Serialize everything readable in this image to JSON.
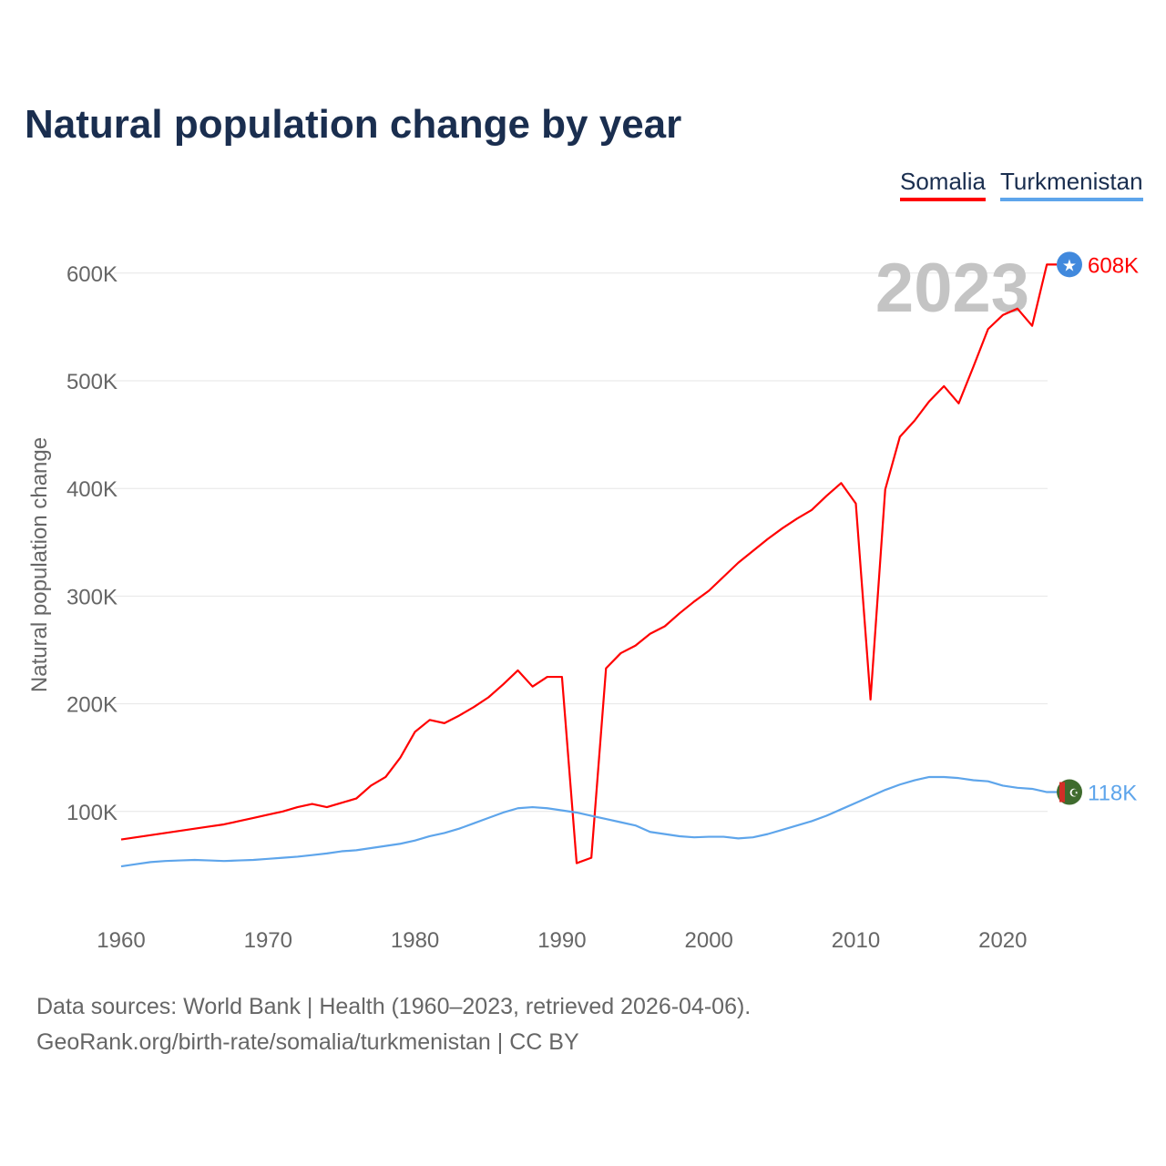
{
  "chart_data": {
    "type": "line",
    "title": "Natural population change by year",
    "xlabel": "",
    "ylabel": "Natural population change",
    "xlim": [
      1960,
      2023
    ],
    "ylim": [
      0,
      650000
    ],
    "y_ticks": [
      {
        "v": 100000,
        "label": "100K"
      },
      {
        "v": 200000,
        "label": "200K"
      },
      {
        "v": 300000,
        "label": "300K"
      },
      {
        "v": 400000,
        "label": "400K"
      },
      {
        "v": 500000,
        "label": "500K"
      },
      {
        "v": 600000,
        "label": "600K"
      }
    ],
    "x_ticks": [
      1960,
      1970,
      1980,
      1990,
      2000,
      2010,
      2020
    ],
    "x_tick_labels": [
      "1960",
      "1970",
      "1980",
      "1990",
      "2000",
      "2010",
      "2020"
    ],
    "grid": true,
    "legend_placement": "top-right",
    "year_watermark": "2023",
    "x": [
      1960,
      1961,
      1962,
      1963,
      1964,
      1965,
      1966,
      1967,
      1968,
      1969,
      1970,
      1971,
      1972,
      1973,
      1974,
      1975,
      1976,
      1977,
      1978,
      1979,
      1980,
      1981,
      1982,
      1983,
      1984,
      1985,
      1986,
      1987,
      1988,
      1989,
      1990,
      1991,
      1992,
      1993,
      1994,
      1995,
      1996,
      1997,
      1998,
      1999,
      2000,
      2001,
      2002,
      2003,
      2004,
      2005,
      2006,
      2007,
      2008,
      2009,
      2010,
      2011,
      2012,
      2013,
      2014,
      2015,
      2016,
      2017,
      2018,
      2019,
      2020,
      2021,
      2022,
      2023
    ],
    "series": [
      {
        "name": "Somalia",
        "color": "#ff0000",
        "end_label": "608K",
        "flag": "somalia-flag-icon",
        "values": [
          74000,
          76000,
          78000,
          80000,
          82000,
          84000,
          86000,
          88000,
          91000,
          94000,
          97000,
          100000,
          104000,
          107000,
          104000,
          108000,
          112000,
          124000,
          132000,
          150000,
          174000,
          185000,
          182000,
          189000,
          197000,
          206000,
          218000,
          231000,
          216000,
          225000,
          225000,
          52000,
          57000,
          233000,
          247000,
          254000,
          265000,
          272000,
          284000,
          295000,
          305000,
          318000,
          331000,
          342000,
          353000,
          363000,
          372000,
          380000,
          393000,
          405000,
          386000,
          204000,
          399000,
          448000,
          463000,
          481000,
          495000,
          479000,
          513000,
          548000,
          561000,
          567000,
          551000,
          608000
        ]
      },
      {
        "name": "Turkmenistan",
        "color": "#5ea5eb",
        "end_label": "118K",
        "flag": "turkmenistan-flag-icon",
        "values": [
          49000,
          51000,
          53000,
          54000,
          54500,
          55000,
          54500,
          54000,
          54500,
          55000,
          56000,
          57000,
          58000,
          59500,
          61000,
          63000,
          64000,
          66000,
          68000,
          70000,
          73000,
          77000,
          80000,
          84000,
          89000,
          94000,
          99000,
          103000,
          104000,
          103000,
          101000,
          99000,
          96000,
          93000,
          90000,
          87000,
          81000,
          79000,
          77000,
          76000,
          76500,
          76500,
          75000,
          76000,
          79000,
          83000,
          87000,
          91000,
          96000,
          102000,
          108000,
          114000,
          120000,
          125000,
          129000,
          132000,
          132000,
          131000,
          129000,
          128000,
          124000,
          122000,
          121000,
          118000
        ]
      }
    ]
  },
  "footer": {
    "line1": "Data sources: World Bank | Health (1960–2023, retrieved 2026-04-06).",
    "line2": "GeoRank.org/birth-rate/somalia/turkmenistan | CC BY"
  }
}
